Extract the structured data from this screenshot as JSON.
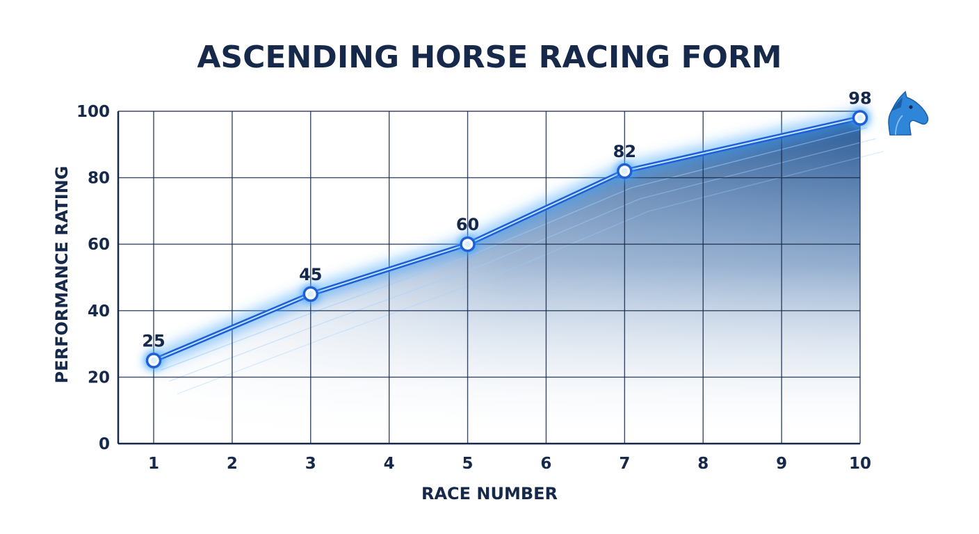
{
  "chart_data": {
    "type": "line",
    "title": "ASCENDING HORSE RACING FORM",
    "xlabel": "RACE NUMBER",
    "ylabel": "PERFORMANCE RATING",
    "x_ticks": [
      "1",
      "2",
      "3",
      "4",
      "5",
      "6",
      "7",
      "8",
      "9",
      "10"
    ],
    "y_ticks": [
      0,
      20,
      40,
      60,
      80,
      100
    ],
    "xlim": [
      1,
      10
    ],
    "ylim": [
      0,
      100
    ],
    "grid": true,
    "points": [
      {
        "x": 1,
        "y": 25,
        "label": "25"
      },
      {
        "x": 3,
        "y": 45,
        "label": "45"
      },
      {
        "x": 5,
        "y": 60,
        "label": "60"
      },
      {
        "x": 7,
        "y": 82,
        "label": "82"
      },
      {
        "x": 10,
        "y": 98,
        "label": "98"
      }
    ],
    "colors": {
      "line": "#1f5fd6",
      "glow": "#3fa2ff",
      "fill": "#1c4f8e",
      "grid": "#16294a",
      "text": "#16294a",
      "icon": "#2f86d9"
    },
    "icon": "horse-head-icon"
  }
}
